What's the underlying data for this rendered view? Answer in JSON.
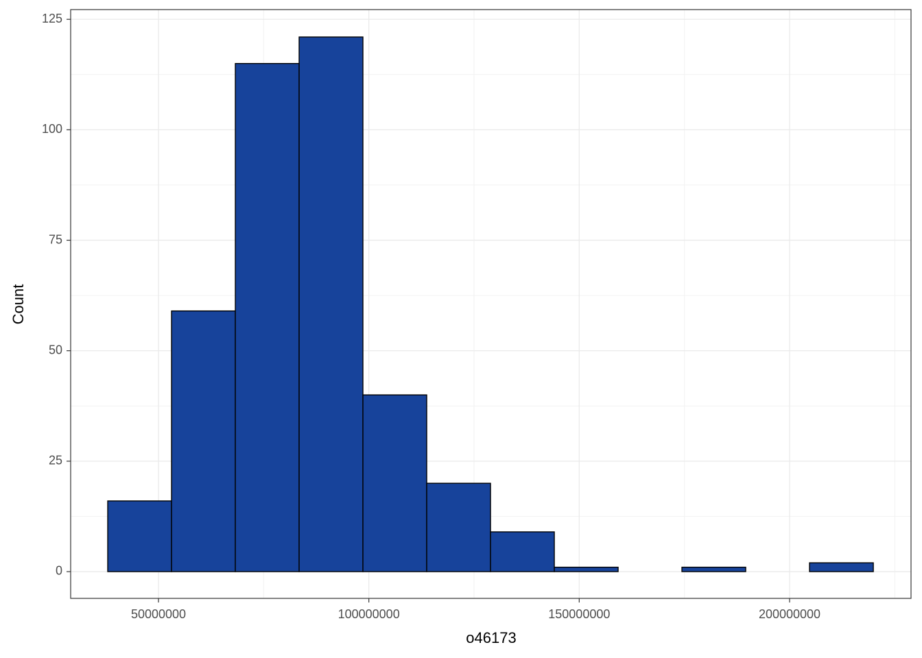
{
  "chart_data": {
    "type": "histogram",
    "x_label": "o46173",
    "y_label": "Count",
    "bins": [
      37940000,
      53103333,
      68266667,
      83430000,
      98593333,
      113756667,
      128920000,
      144083333,
      159246667,
      174410000,
      189573333,
      204736667,
      219900000
    ],
    "values": [
      16,
      59,
      115,
      121,
      40,
      20,
      9,
      1,
      0,
      1,
      0,
      2
    ],
    "color": "#17439b",
    "xlim": [
      29130000,
      228860000
    ],
    "ylim": [
      -6.05,
      127.2
    ],
    "xticks": [
      50000000,
      100000000,
      150000000,
      200000000
    ],
    "yticks": [
      0,
      25,
      50,
      75,
      100,
      125
    ],
    "grid": true
  }
}
